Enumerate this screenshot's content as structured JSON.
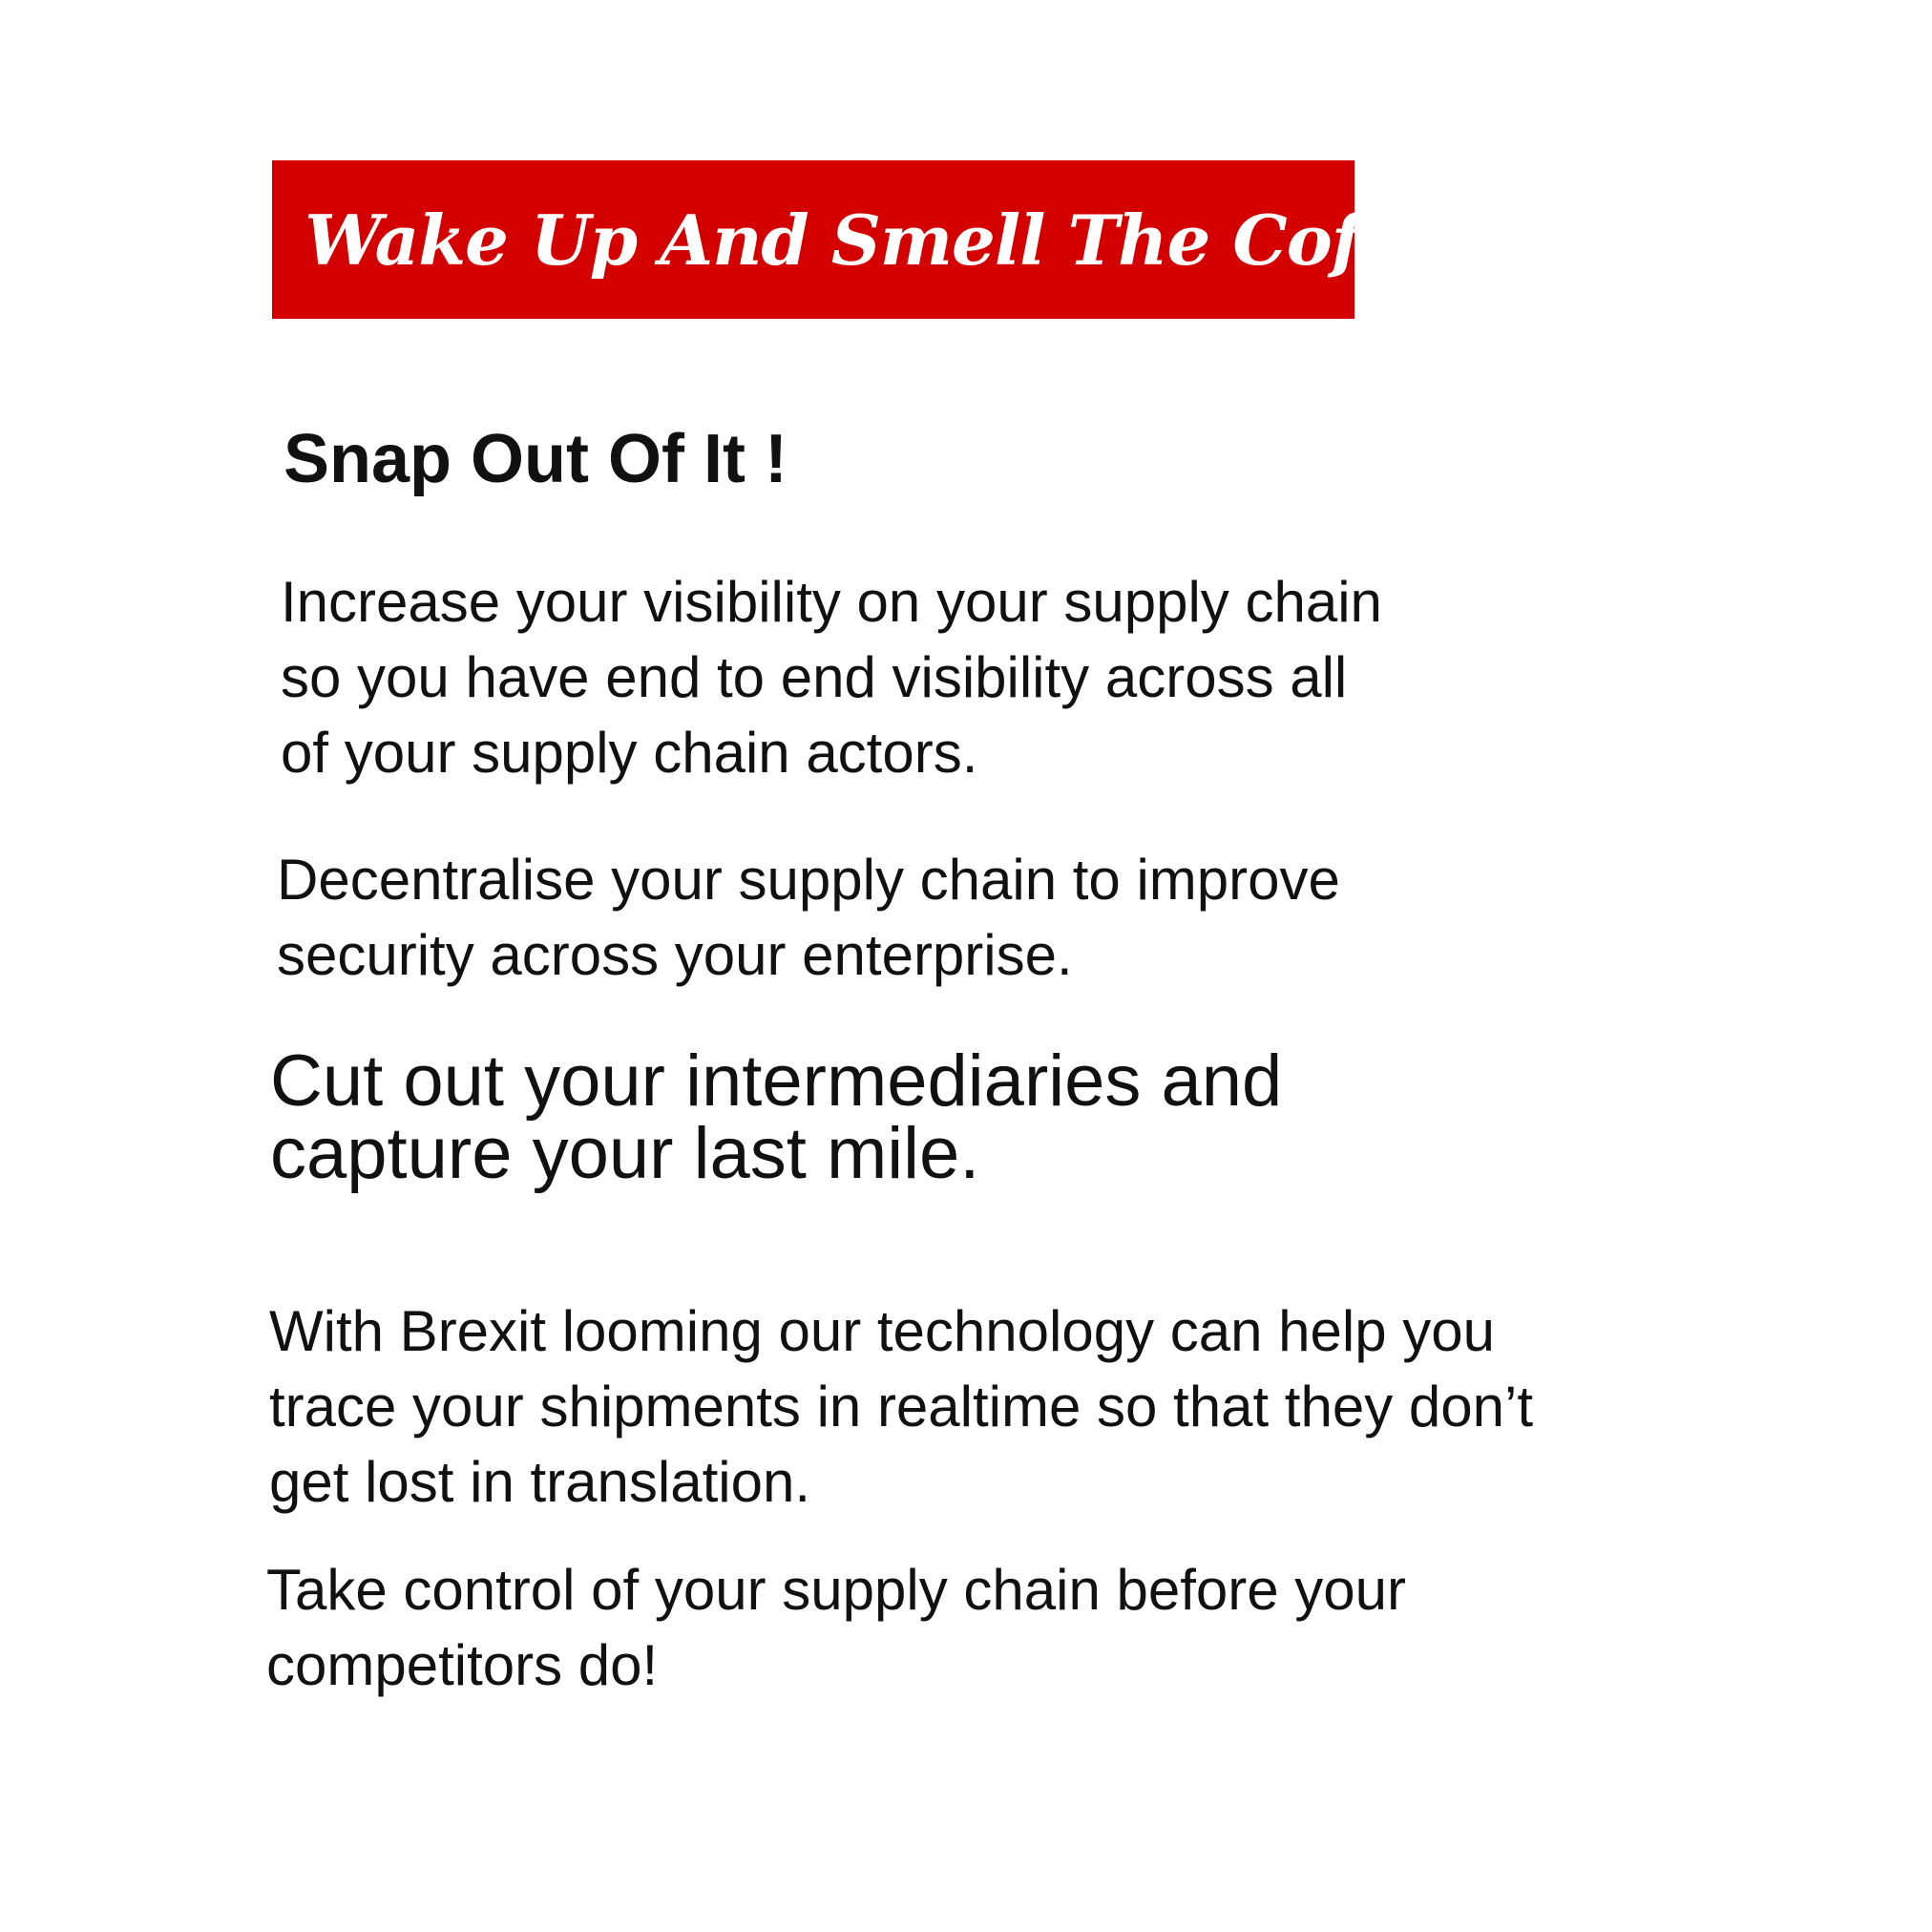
{
  "colors": {
    "banner_background": "#d40000",
    "banner_text": "#ffffff",
    "body_text": "#111111",
    "page_background": "#ffffff"
  },
  "banner": {
    "text": "Wake Up And Smell The Coffee......"
  },
  "heading": "Snap Out Of It !",
  "paragraphs": [
    "Increase your visibility on your supply chain\nso you have end to end visibility across all\nof your supply chain actors.",
    "Decentralise your supply chain to improve\nsecurity across your enterprise.",
    "Cut out your intermediaries and\ncapture your last mile.",
    "With Brexit looming our technology can help you\ntrace your shipments in realtime so that they don’t\nget lost in translation.",
    "Take control of your supply chain before your\ncompetitors do!"
  ]
}
